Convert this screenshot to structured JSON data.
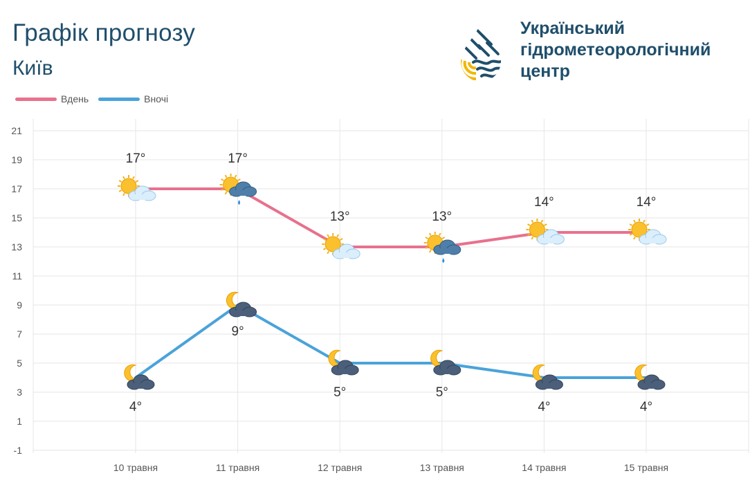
{
  "header": {
    "title": "Графік прогнозу",
    "city": "Київ"
  },
  "org": {
    "line1": "Український",
    "line2": "гідрометеорологічний",
    "line3": "центр"
  },
  "colors": {
    "day": "#e8718d",
    "night": "#4aa3d9",
    "title": "#1f4e6b",
    "grid": "#e6e6e6"
  },
  "chart_data": {
    "type": "line",
    "categories": [
      "10 травня",
      "11 травня",
      "12 травня",
      "13 травня",
      "14 травня",
      "15 травня"
    ],
    "series": [
      {
        "name": "Вдень",
        "values": [
          17,
          17,
          13,
          13,
          14,
          14
        ],
        "labels": [
          "17°",
          "17°",
          "13°",
          "13°",
          "14°",
          "14°"
        ],
        "icons": [
          "sun-cloud-icon",
          "sun-rain-icon",
          "sun-cloud-icon",
          "sun-rain-icon",
          "sun-cloud-icon",
          "sun-cloud-icon"
        ]
      },
      {
        "name": "Вночі",
        "values": [
          4,
          9,
          5,
          5,
          4,
          4
        ],
        "labels": [
          "4°",
          "9°",
          "5°",
          "5°",
          "4°",
          "4°"
        ],
        "icons": [
          "moon-cloud-icon",
          "moon-cloud-icon",
          "moon-cloud-icon",
          "moon-cloud-icon",
          "moon-cloud-icon",
          "moon-cloud-icon"
        ]
      }
    ],
    "yticks": [
      21,
      19,
      17,
      15,
      13,
      11,
      9,
      7,
      5,
      3,
      1,
      -1
    ],
    "ylim": [
      -1,
      21
    ],
    "grid": true,
    "legend": "top-left"
  }
}
